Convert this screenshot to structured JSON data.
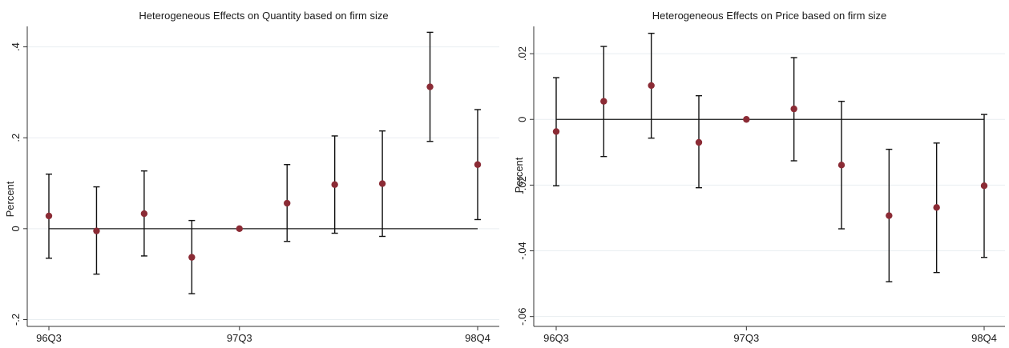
{
  "chart_data": [
    {
      "type": "scatter",
      "title": "Heterogeneous Effects on Quantity based on firm size",
      "ylabel": "Percent",
      "xlabel": "",
      "x": [
        0,
        1,
        2,
        3,
        4,
        5,
        6,
        7,
        8,
        9
      ],
      "x_ticks": [
        {
          "x": 0,
          "label": "96Q3"
        },
        {
          "x": 4,
          "label": "97Q3"
        },
        {
          "x": 9,
          "label": "98Q4"
        }
      ],
      "y_ticks": [
        {
          "value": -0.2,
          "label": "-.2"
        },
        {
          "value": 0,
          "label": "0"
        },
        {
          "value": 0.2,
          "label": ".2"
        },
        {
          "value": 0.4,
          "label": ".4"
        }
      ],
      "ylim": [
        -0.215,
        0.445
      ],
      "xlim": [
        0,
        9
      ],
      "grid": true,
      "reference_line": 0,
      "marker_color": "#8b2b35",
      "series": [
        {
          "estimate": [
            0.028,
            -0.005,
            0.033,
            -0.063,
            0.0,
            0.056,
            0.097,
            0.099,
            0.312,
            0.141
          ],
          "ci_low": [
            -0.065,
            -0.1,
            -0.06,
            -0.143,
            0.0,
            -0.028,
            -0.01,
            -0.017,
            0.192,
            0.02
          ],
          "ci_high": [
            0.12,
            0.092,
            0.127,
            0.018,
            0.0,
            0.141,
            0.204,
            0.215,
            0.432,
            0.262
          ]
        }
      ]
    },
    {
      "type": "scatter",
      "title": "Heterogeneous Effects on Price based on firm size",
      "ylabel": "Percent",
      "xlabel": "",
      "x": [
        0,
        1,
        2,
        3,
        4,
        5,
        6,
        7,
        8,
        9
      ],
      "x_ticks": [
        {
          "x": 0,
          "label": "96Q3"
        },
        {
          "x": 4,
          "label": "97Q3"
        },
        {
          "x": 9,
          "label": "98Q4"
        }
      ],
      "y_ticks": [
        {
          "value": -0.06,
          "label": "-.06"
        },
        {
          "value": -0.04,
          "label": "-.04"
        },
        {
          "value": -0.02,
          "label": "-.02"
        },
        {
          "value": 0,
          "label": "0"
        },
        {
          "value": 0.02,
          "label": ".02"
        }
      ],
      "ylim": [
        -0.063,
        0.0283
      ],
      "xlim": [
        0,
        9
      ],
      "grid": true,
      "reference_line": 0,
      "marker_color": "#8b2b35",
      "series": [
        {
          "estimate": [
            -0.0037,
            0.0055,
            0.0103,
            -0.007,
            0.0,
            0.0032,
            -0.0139,
            -0.0293,
            -0.0268,
            -0.0202
          ],
          "ci_low": [
            -0.0202,
            -0.0113,
            -0.0057,
            -0.0208,
            0.0,
            -0.0126,
            -0.0333,
            -0.0494,
            -0.0466,
            -0.042
          ],
          "ci_high": [
            0.0127,
            0.0222,
            0.0262,
            0.0072,
            0.0,
            0.0188,
            0.0055,
            -0.0091,
            -0.0072,
            0.0015
          ]
        }
      ]
    }
  ]
}
